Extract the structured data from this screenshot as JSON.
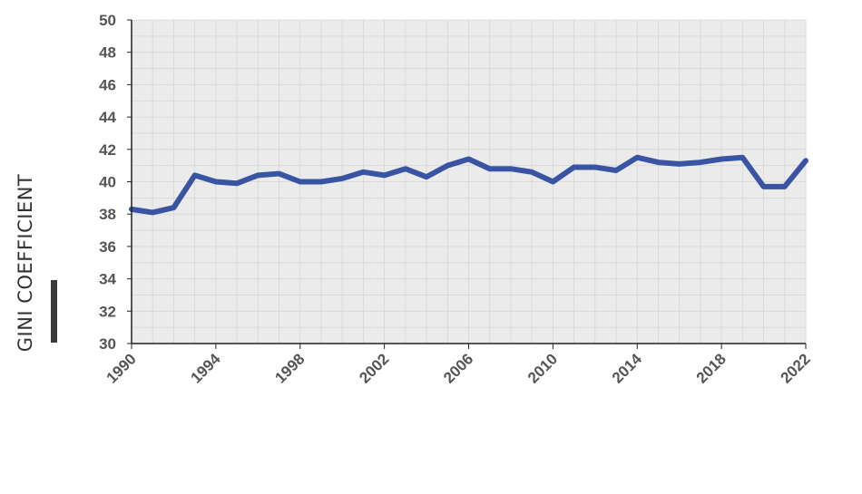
{
  "chart_data": {
    "type": "line",
    "title": "",
    "xlabel": "",
    "ylabel": "GINI COEFFICIENT",
    "xlim": [
      1990,
      2022
    ],
    "ylim": [
      30,
      50
    ],
    "grid": true,
    "legend": "none",
    "x_ticks": [
      1990,
      1994,
      1998,
      2002,
      2006,
      2010,
      2014,
      2018,
      2022
    ],
    "x_tick_labels": [
      "1990",
      "1994",
      "1998",
      "2002",
      "2006",
      "2010",
      "2014",
      "2018",
      "2022"
    ],
    "y_ticks": [
      30,
      32,
      34,
      36,
      38,
      40,
      42,
      44,
      46,
      48,
      50
    ],
    "y_tick_labels": [
      "30",
      "32",
      "34",
      "36",
      "38",
      "40",
      "42",
      "44",
      "46",
      "48",
      "50"
    ],
    "colors": {
      "line": "#3a54a4",
      "plot_background": "#ebebeb",
      "grid": "#d6d6d6",
      "axis": "#222222",
      "tick_label": "#555555"
    },
    "series": [
      {
        "x": [
          1990,
          1991,
          1992,
          1993,
          1994,
          1995,
          1996,
          1997,
          1998,
          1999,
          2000,
          2001,
          2002,
          2003,
          2004,
          2005,
          2006,
          2007,
          2008,
          2009,
          2010,
          2011,
          2012,
          2013,
          2014,
          2015,
          2016,
          2017,
          2018,
          2019,
          2020,
          2021,
          2022
        ],
        "values": [
          38.3,
          38.1,
          38.4,
          40.4,
          40.0,
          39.9,
          40.4,
          40.5,
          40.0,
          40.0,
          40.2,
          40.6,
          40.4,
          40.8,
          40.3,
          41.0,
          41.4,
          40.8,
          40.8,
          40.6,
          40.0,
          40.9,
          40.9,
          40.7,
          41.5,
          41.2,
          41.1,
          41.2,
          41.4,
          41.5,
          39.7,
          39.7,
          41.3
        ]
      }
    ]
  }
}
